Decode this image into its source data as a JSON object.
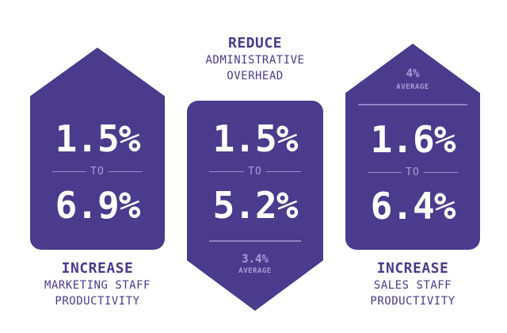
{
  "colors": {
    "panel": "#4b3b8c",
    "text_on_panel": "#ffffff",
    "muted": "#a89ddb"
  },
  "left": {
    "top_value": "1.5%",
    "connector": "TO",
    "bottom_value": "6.9%",
    "caption_title": "INCREASE",
    "caption_line1": "MARKETING STAFF",
    "caption_line2": "PRODUCTIVITY"
  },
  "middle": {
    "caption_title": "REDUCE",
    "caption_line1": "ADMINISTRATIVE",
    "caption_line2": "OVERHEAD",
    "top_value": "1.5%",
    "connector": "TO",
    "bottom_value": "5.2%",
    "average_value": "3.4%",
    "average_label": "AVERAGE"
  },
  "right": {
    "average_value": "4%",
    "average_label": "AVERAGE",
    "top_value": "1.6%",
    "connector": "TO",
    "bottom_value": "6.4%",
    "caption_title": "INCREASE",
    "caption_line1": "SALES STAFF",
    "caption_line2": "PRODUCTIVITY"
  }
}
